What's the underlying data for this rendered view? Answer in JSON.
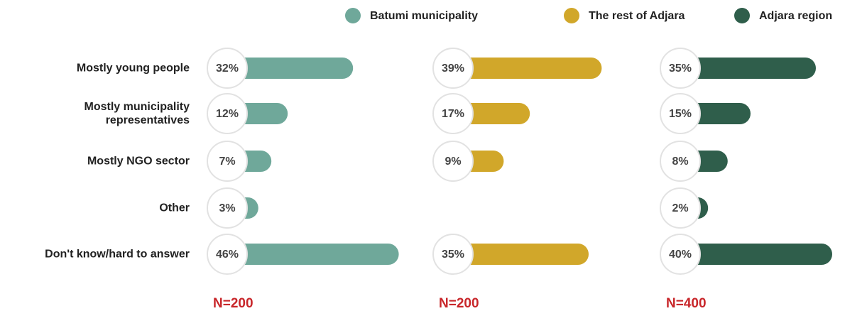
{
  "chart_data": {
    "type": "bar",
    "orientation": "horizontal",
    "categories": [
      "Mostly young people",
      "Mostly municipality representatives",
      "Mostly NGO sector",
      "Other",
      "Don't know/hard to answer"
    ],
    "series": [
      {
        "name": "Batumi municipality",
        "color": "#6fa89a",
        "values": [
          32,
          12,
          7,
          3,
          46
        ],
        "value_labels": [
          "32%",
          "12%",
          "7%",
          "3%",
          "46%"
        ]
      },
      {
        "name": "The rest of Adjara",
        "color": "#d1a72a",
        "values": [
          39,
          17,
          9,
          null,
          35
        ],
        "value_labels": [
          "39%",
          "17%",
          "9%",
          null,
          "35%"
        ]
      },
      {
        "name": "Adjara region",
        "color": "#2f5e4b",
        "values": [
          35,
          15,
          8,
          2,
          40
        ],
        "value_labels": [
          "35%",
          "15%",
          "8%",
          "2%",
          "40%"
        ]
      }
    ],
    "annotations": [
      "N=200",
      "N=200",
      "N=400"
    ]
  }
}
